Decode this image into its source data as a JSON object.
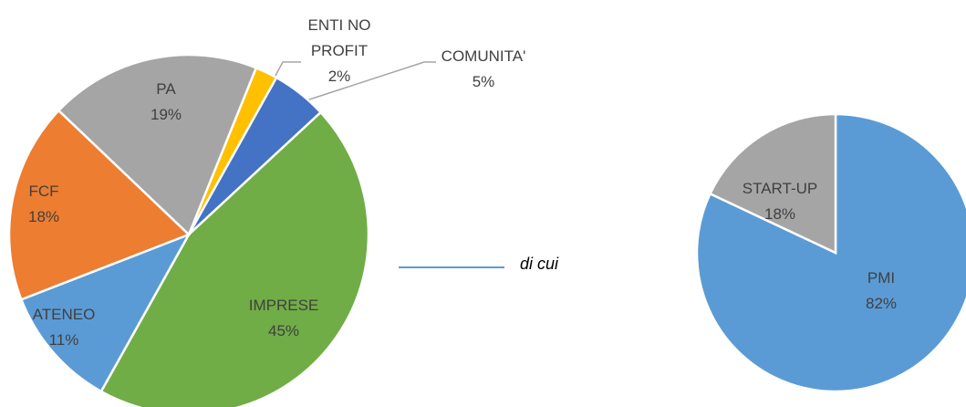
{
  "chart_data": [
    {
      "type": "pie",
      "categories": [
        "ENTI NO PROFIT",
        "COMUNITA'",
        "IMPRESE",
        "ATENEO",
        "FCF",
        "PA"
      ],
      "values": [
        2,
        5,
        45,
        11,
        18,
        19
      ],
      "value_labels": [
        "2%",
        "5%",
        "45%",
        "11%",
        "18%",
        "19%"
      ],
      "colors": [
        "#ffc000",
        "#4472c4",
        "#70ad47",
        "#5b9bd5",
        "#ed7d31",
        "#a5a5a5"
      ],
      "annotation": "di cui"
    },
    {
      "type": "pie",
      "categories": [
        "PMI",
        "START-UP"
      ],
      "values": [
        82,
        18
      ],
      "value_labels": [
        "82%",
        "18%"
      ],
      "colors": [
        "#5b9bd5",
        "#a5a5a5"
      ]
    }
  ]
}
